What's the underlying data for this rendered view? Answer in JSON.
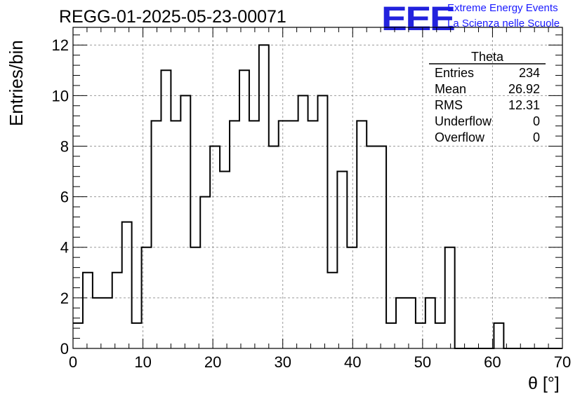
{
  "chart_data": {
    "type": "bar",
    "title": "REGG-01-2025-05-23-00071",
    "xlabel": "θ [°]",
    "ylabel": "Entries/bin",
    "xlim": [
      0,
      70
    ],
    "ylim": [
      0,
      12.7
    ],
    "grid": true,
    "bin_edges_start": 0,
    "bin_width": 1.4,
    "counts": [
      1,
      3,
      2,
      2,
      3,
      5,
      1,
      4,
      9,
      11,
      9,
      10,
      4,
      6,
      8,
      7,
      9,
      11,
      9,
      12,
      8,
      9,
      9,
      10,
      9,
      10,
      3,
      7,
      4,
      9,
      8,
      8,
      1,
      2,
      2,
      1,
      2,
      1,
      4,
      0,
      0,
      0,
      0,
      1,
      0,
      0,
      0,
      0,
      0,
      0
    ],
    "x_ticks": [
      0,
      10,
      20,
      30,
      40,
      50,
      60,
      70
    ],
    "y_ticks": [
      0,
      2,
      4,
      6,
      8,
      10,
      12
    ],
    "stats_box": {
      "title": "Theta",
      "rows": [
        {
          "label": "Entries",
          "value": "234"
        },
        {
          "label": "Mean",
          "value": "26.92"
        },
        {
          "label": "RMS",
          "value": "12.31"
        },
        {
          "label": "Underflow",
          "value": "0"
        },
        {
          "label": "Overflow",
          "value": "0"
        }
      ]
    }
  },
  "logo": {
    "mark": "EEE",
    "line1": "Extreme Energy Events",
    "line2": "La Scienza nelle Scuole"
  },
  "colors": {
    "histogram": "#000000",
    "grid": "#9a9a9a",
    "logo": "#1a1aff"
  }
}
